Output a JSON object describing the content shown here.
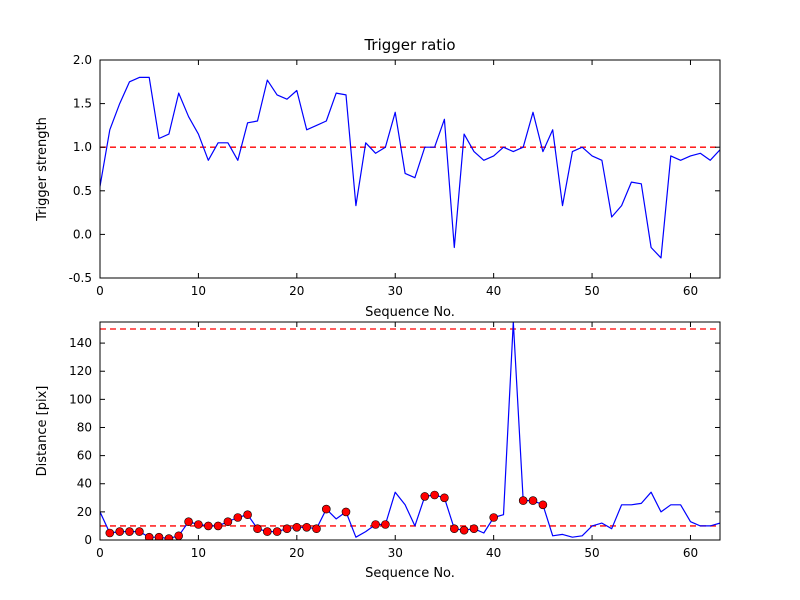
{
  "figure": {
    "title": "Trigger ratio",
    "background": "#ffffff"
  },
  "colors": {
    "data_line": "#0000ff",
    "threshold_line": "#ff0000",
    "marker_face": "#ff0000",
    "marker_edge": "#000000",
    "axis": "#000000"
  },
  "chart_data": [
    {
      "type": "line",
      "title": "Trigger ratio",
      "xlabel": "Sequence No.",
      "ylabel": "Trigger strength",
      "xlim": [
        0,
        63
      ],
      "ylim": [
        -0.5,
        2.0
      ],
      "xticks": [
        0,
        10,
        20,
        30,
        40,
        50,
        60
      ],
      "xtick_labels": [
        "0",
        "10",
        "20",
        "30",
        "40",
        "50",
        "60"
      ],
      "yticks": [
        -0.5,
        0.0,
        0.5,
        1.0,
        1.5,
        2.0
      ],
      "ytick_labels": [
        "-0.5",
        "0.0",
        "0.5",
        "1.0",
        "1.5",
        "2.0"
      ],
      "grid": false,
      "legend": "none",
      "thresholds": [
        1.0
      ],
      "x": [
        0,
        1,
        2,
        3,
        4,
        5,
        6,
        7,
        8,
        9,
        10,
        11,
        12,
        13,
        14,
        15,
        16,
        17,
        18,
        19,
        20,
        21,
        22,
        23,
        24,
        25,
        26,
        27,
        28,
        29,
        30,
        31,
        32,
        33,
        34,
        35,
        36,
        37,
        38,
        39,
        40,
        41,
        42,
        43,
        44,
        45,
        46,
        47,
        48,
        49,
        50,
        51,
        52,
        53,
        54,
        55,
        56,
        57,
        58,
        59,
        60,
        61,
        62,
        63
      ],
      "y": [
        0.55,
        1.2,
        1.5,
        1.75,
        1.8,
        1.8,
        1.1,
        1.15,
        1.62,
        1.35,
        1.15,
        0.85,
        1.05,
        1.05,
        0.85,
        1.28,
        1.3,
        1.77,
        1.6,
        1.55,
        1.65,
        1.2,
        1.25,
        1.3,
        1.62,
        1.6,
        0.33,
        1.05,
        0.93,
        1.0,
        1.4,
        0.7,
        0.65,
        1.0,
        1.0,
        1.32,
        -0.15,
        1.15,
        0.95,
        0.85,
        0.9,
        1.0,
        0.95,
        1.0,
        1.4,
        0.95,
        1.2,
        0.33,
        0.95,
        1.0,
        0.9,
        0.85,
        0.2,
        0.33,
        0.6,
        0.58,
        -0.15,
        -0.27,
        0.9,
        0.85,
        0.9,
        0.93,
        0.85,
        0.97
      ],
      "marker_indices": []
    },
    {
      "type": "line",
      "title": "",
      "xlabel": "Sequence No.",
      "ylabel": "Distance [pix]",
      "xlim": [
        0,
        63
      ],
      "ylim": [
        0,
        155
      ],
      "xticks": [
        0,
        10,
        20,
        30,
        40,
        50,
        60
      ],
      "xtick_labels": [
        "0",
        "10",
        "20",
        "30",
        "40",
        "50",
        "60"
      ],
      "yticks": [
        0,
        20,
        40,
        60,
        80,
        100,
        120,
        140
      ],
      "ytick_labels": [
        "0",
        "20",
        "40",
        "60",
        "80",
        "100",
        "120",
        "140"
      ],
      "grid": false,
      "legend": "none",
      "thresholds": [
        150,
        10
      ],
      "x": [
        0,
        1,
        2,
        3,
        4,
        5,
        6,
        7,
        8,
        9,
        10,
        11,
        12,
        13,
        14,
        15,
        16,
        17,
        18,
        19,
        20,
        21,
        22,
        23,
        24,
        25,
        26,
        27,
        28,
        29,
        30,
        31,
        32,
        33,
        34,
        35,
        36,
        37,
        38,
        39,
        40,
        41,
        42,
        43,
        44,
        45,
        46,
        47,
        48,
        49,
        50,
        51,
        52,
        53,
        54,
        55,
        56,
        57,
        58,
        59,
        60,
        61,
        62,
        63
      ],
      "y": [
        20,
        5,
        6,
        6,
        6,
        2,
        2,
        1,
        3,
        13,
        11,
        10,
        10,
        13,
        16,
        18,
        8,
        6,
        6,
        8,
        9,
        9,
        8,
        22,
        15,
        20,
        2,
        6,
        11,
        11,
        34,
        25,
        10,
        31,
        32,
        30,
        8,
        7,
        8,
        5,
        16,
        18,
        155,
        28,
        28,
        25,
        3,
        4,
        2,
        3,
        10,
        12,
        8,
        25,
        25,
        26,
        34,
        20,
        25,
        25,
        13,
        10,
        10,
        12
      ],
      "marker_indices": [
        1,
        2,
        3,
        4,
        5,
        6,
        7,
        8,
        9,
        10,
        11,
        12,
        13,
        14,
        15,
        16,
        17,
        18,
        19,
        20,
        21,
        22,
        23,
        25,
        28,
        29,
        33,
        34,
        35,
        36,
        37,
        38,
        40,
        43,
        44,
        45
      ]
    }
  ]
}
